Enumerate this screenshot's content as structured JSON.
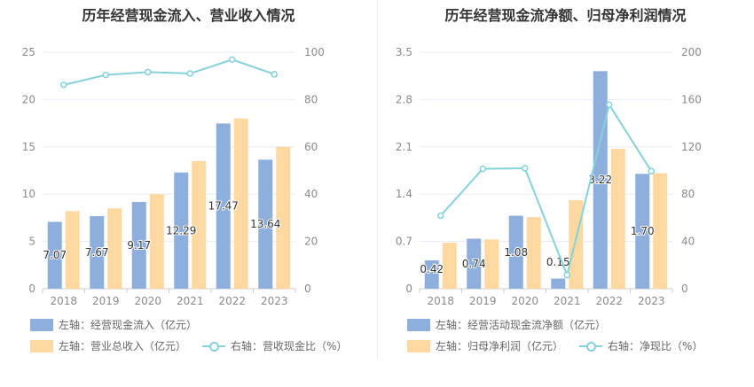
{
  "colors": {
    "series1": "#8eaedd",
    "series2": "#fdd9a1",
    "line": "#86d1da",
    "grid": "#e8ebf5",
    "axis": "#cccccc"
  },
  "chart_data": [
    {
      "type": "bar",
      "title": "历年经营现金流入、营业收入情况",
      "categories": [
        "2018",
        "2019",
        "2020",
        "2021",
        "2022",
        "2023"
      ],
      "y_left": {
        "min": 0,
        "max": 25,
        "ticks": [
          "0",
          "5",
          "10",
          "15",
          "20",
          "25"
        ]
      },
      "y_right": {
        "min": 0,
        "max": 100,
        "ticks": [
          "0",
          "20",
          "40",
          "60",
          "80",
          "100"
        ]
      },
      "series": [
        {
          "name": "经营现金流入（亿元）",
          "axis": "left",
          "kind": "bar",
          "values": [
            7.07,
            7.67,
            9.17,
            12.29,
            17.47,
            13.64
          ],
          "labels": [
            "7.07",
            "7.67",
            "9.17",
            "12.29",
            "17.47",
            "13.64"
          ]
        },
        {
          "name": "营业总收入（亿元）",
          "axis": "left",
          "kind": "bar",
          "values": [
            8.2,
            8.5,
            10.0,
            13.5,
            18.0,
            15.0
          ]
        },
        {
          "name": "营收现金比（%）",
          "axis": "right",
          "kind": "line",
          "values": [
            86.2,
            90.4,
            91.6,
            91.0,
            96.9,
            90.7
          ]
        }
      ],
      "legend": [
        {
          "prefix": "左轴：",
          "text": "经营现金流入（亿元）",
          "swatch": "bar1"
        },
        {
          "prefix": "左轴：",
          "text": "营业总收入（亿元）",
          "swatch": "bar2"
        },
        {
          "prefix": "右轴：",
          "text": "营收现金比（%）",
          "swatch": "line"
        }
      ]
    },
    {
      "type": "bar",
      "title": "历年经营现金流净额、归母净利润情况",
      "categories": [
        "2018",
        "2019",
        "2020",
        "2021",
        "2022",
        "2023"
      ],
      "y_left": {
        "min": 0,
        "max": 3.5,
        "ticks": [
          "0",
          "0.7",
          "1.4",
          "2.1",
          "2.8",
          "3.5"
        ]
      },
      "y_right": {
        "min": 0,
        "max": 200,
        "ticks": [
          "0",
          "40",
          "80",
          "120",
          "160",
          "200"
        ]
      },
      "series": [
        {
          "name": "经营活动现金流净额（亿元）",
          "axis": "left",
          "kind": "bar",
          "values": [
            0.42,
            0.74,
            1.08,
            0.15,
            3.22,
            1.7
          ],
          "labels": [
            "0.42",
            "0.74",
            "1.08",
            "0.15",
            "3.22",
            "1.70"
          ]
        },
        {
          "name": "归母净利润（亿元）",
          "axis": "left",
          "kind": "bar",
          "values": [
            0.68,
            0.73,
            1.06,
            1.31,
            2.07,
            1.71
          ]
        },
        {
          "name": "净现比（%）",
          "axis": "right",
          "kind": "line",
          "values": [
            61.8,
            101.4,
            101.9,
            11.5,
            155.6,
            99.4
          ]
        }
      ],
      "legend": [
        {
          "prefix": "左轴：",
          "text": "经营活动现金流净额（亿元）",
          "swatch": "bar1"
        },
        {
          "prefix": "左轴：",
          "text": "归母净利润（亿元）",
          "swatch": "bar2"
        },
        {
          "prefix": "右轴：",
          "text": "净现比（%）",
          "swatch": "line"
        }
      ]
    }
  ]
}
